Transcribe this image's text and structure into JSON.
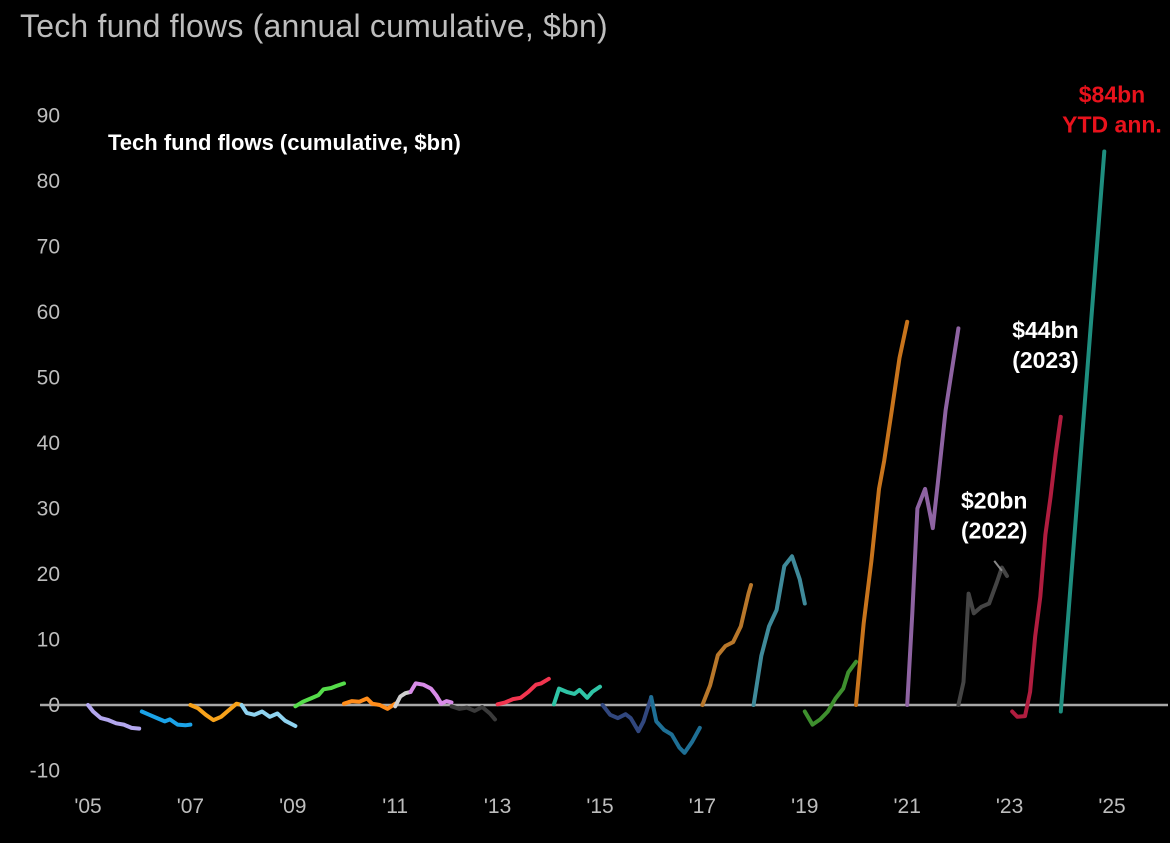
{
  "page_title": "Tech fund flows (annual cumulative, $bn)",
  "chart_data": {
    "type": "line",
    "title": "Tech fund flows (annual cumulative, $bn)",
    "inner_title": "Tech fund flows (cumulative, $bn)",
    "xlabel": "",
    "ylabel": "",
    "xlim": [
      2005,
      2025.4
    ],
    "ylim": [
      -10,
      92
    ],
    "yticks": [
      90,
      80,
      70,
      60,
      50,
      40,
      30,
      20,
      10,
      0,
      -10
    ],
    "xticks": [
      {
        "value": 2005,
        "label": "'05"
      },
      {
        "value": 2007,
        "label": "'07"
      },
      {
        "value": 2009,
        "label": "'09"
      },
      {
        "value": 2011,
        "label": "'11"
      },
      {
        "value": 2013,
        "label": "'13"
      },
      {
        "value": 2015,
        "label": "'15"
      },
      {
        "value": 2017,
        "label": "'17"
      },
      {
        "value": 2019,
        "label": "'19"
      },
      {
        "value": 2021,
        "label": "'21"
      },
      {
        "value": 2023,
        "label": "'23"
      },
      {
        "value": 2025,
        "label": "'25"
      }
    ],
    "grid": false,
    "zero_line_color": "#a8a8a8",
    "series": [
      {
        "color": "#b3a7ee",
        "points": [
          [
            2005.0,
            0
          ],
          [
            2005.1,
            -1
          ],
          [
            2005.25,
            -2
          ],
          [
            2005.4,
            -2.3
          ],
          [
            2005.55,
            -2.8
          ],
          [
            2005.7,
            -3
          ],
          [
            2005.85,
            -3.5
          ],
          [
            2006.0,
            -3.6
          ]
        ]
      },
      {
        "color": "#1ba3e8",
        "points": [
          [
            2006.05,
            -1
          ],
          [
            2006.2,
            -1.5
          ],
          [
            2006.35,
            -2
          ],
          [
            2006.5,
            -2.5
          ],
          [
            2006.6,
            -2.2
          ],
          [
            2006.75,
            -3
          ],
          [
            2006.9,
            -3.1
          ],
          [
            2007.0,
            -3
          ]
        ]
      },
      {
        "color": "#f7a21a",
        "points": [
          [
            2007.0,
            0
          ],
          [
            2007.15,
            -0.5
          ],
          [
            2007.3,
            -1.5
          ],
          [
            2007.45,
            -2.3
          ],
          [
            2007.6,
            -1.8
          ],
          [
            2007.75,
            -0.8
          ],
          [
            2007.9,
            0.2
          ],
          [
            2008.0,
            0
          ]
        ]
      },
      {
        "color": "#8fd3f0",
        "points": [
          [
            2008.0,
            0
          ],
          [
            2008.1,
            -1.2
          ],
          [
            2008.25,
            -1.5
          ],
          [
            2008.4,
            -1
          ],
          [
            2008.55,
            -1.8
          ],
          [
            2008.7,
            -1.3
          ],
          [
            2008.85,
            -2.4
          ],
          [
            2009.05,
            -3.2
          ]
        ]
      },
      {
        "color": "#55dc4a",
        "points": [
          [
            2009.05,
            -0.2
          ],
          [
            2009.2,
            0.5
          ],
          [
            2009.35,
            1
          ],
          [
            2009.5,
            1.5
          ],
          [
            2009.6,
            2.4
          ],
          [
            2009.75,
            2.6
          ],
          [
            2009.85,
            2.9
          ],
          [
            2010.0,
            3.3
          ]
        ]
      },
      {
        "color": "#ff8c1a",
        "points": [
          [
            2010.0,
            0.2
          ],
          [
            2010.15,
            0.6
          ],
          [
            2010.3,
            0.5
          ],
          [
            2010.45,
            1
          ],
          [
            2010.55,
            0.2
          ],
          [
            2010.7,
            0
          ],
          [
            2010.85,
            -0.6
          ],
          [
            2011.0,
            0.2
          ]
        ]
      },
      {
        "color": "#d0d0d0",
        "points": [
          [
            2011.0,
            -0.2
          ],
          [
            2011.1,
            1.3
          ],
          [
            2011.2,
            1.8
          ],
          [
            2011.3,
            2
          ]
        ]
      },
      {
        "color": "#d88be8",
        "points": [
          [
            2011.3,
            2
          ],
          [
            2011.4,
            3.3
          ],
          [
            2011.55,
            3.1
          ],
          [
            2011.7,
            2.5
          ],
          [
            2011.8,
            1.5
          ],
          [
            2011.9,
            0.2
          ],
          [
            2012.0,
            0.6
          ],
          [
            2012.1,
            0.4
          ]
        ]
      },
      {
        "color": "#3a3a3a",
        "points": [
          [
            2012.1,
            -0.2
          ],
          [
            2012.25,
            -0.6
          ],
          [
            2012.4,
            -0.4
          ],
          [
            2012.55,
            -0.9
          ],
          [
            2012.7,
            -0.3
          ],
          [
            2012.85,
            -1.3
          ],
          [
            2012.95,
            -2.2
          ]
        ]
      },
      {
        "color": "#f2354f",
        "points": [
          [
            2013.0,
            0.1
          ],
          [
            2013.15,
            0.4
          ],
          [
            2013.3,
            0.9
          ],
          [
            2013.45,
            1.1
          ],
          [
            2013.6,
            2
          ],
          [
            2013.75,
            3.1
          ],
          [
            2013.85,
            3.3
          ],
          [
            2014.0,
            4
          ]
        ]
      },
      {
        "color": "#2fc4a6",
        "points": [
          [
            2014.1,
            0.1
          ],
          [
            2014.2,
            2.5
          ],
          [
            2014.35,
            2
          ],
          [
            2014.5,
            1.7
          ],
          [
            2014.6,
            2.3
          ],
          [
            2014.75,
            1.1
          ],
          [
            2014.85,
            2
          ],
          [
            2015.0,
            2.8
          ]
        ]
      },
      {
        "color": "#31477e",
        "points": [
          [
            2015.05,
            0
          ],
          [
            2015.2,
            -1.5
          ],
          [
            2015.35,
            -2
          ],
          [
            2015.5,
            -1.4
          ],
          [
            2015.6,
            -2
          ],
          [
            2015.75,
            -4
          ],
          [
            2015.85,
            -2.5
          ],
          [
            2016.0,
            1.2
          ]
        ]
      },
      {
        "color": "#1e6f95",
        "points": [
          [
            2016.0,
            1.2
          ],
          [
            2016.1,
            -2.5
          ],
          [
            2016.25,
            -3.8
          ],
          [
            2016.4,
            -4.5
          ],
          [
            2016.55,
            -6.5
          ],
          [
            2016.65,
            -7.3
          ],
          [
            2016.8,
            -5.6
          ],
          [
            2016.95,
            -3.5
          ]
        ]
      },
      {
        "color": "#b8772a",
        "points": [
          [
            2017.0,
            0
          ],
          [
            2017.15,
            3
          ],
          [
            2017.3,
            7.6
          ],
          [
            2017.45,
            9
          ],
          [
            2017.6,
            9.6
          ],
          [
            2017.75,
            12
          ],
          [
            2017.9,
            17
          ],
          [
            2017.95,
            18.3
          ]
        ]
      },
      {
        "color": "#3f8a9a",
        "points": [
          [
            2018.0,
            0
          ],
          [
            2018.15,
            7.5
          ],
          [
            2018.3,
            12
          ],
          [
            2018.45,
            14.5
          ],
          [
            2018.6,
            21.2
          ],
          [
            2018.75,
            22.7
          ],
          [
            2018.9,
            19.2
          ],
          [
            2019.0,
            15.5
          ]
        ]
      },
      {
        "color": "#3e8f2e",
        "points": [
          [
            2019.0,
            -1
          ],
          [
            2019.15,
            -3
          ],
          [
            2019.3,
            -2.2
          ],
          [
            2019.45,
            -1
          ],
          [
            2019.6,
            1
          ],
          [
            2019.75,
            2.5
          ],
          [
            2019.85,
            5
          ],
          [
            2020.0,
            6.6
          ]
        ]
      },
      {
        "color": "#c8741c",
        "points": [
          [
            2020.0,
            0
          ],
          [
            2020.15,
            12.5
          ],
          [
            2020.3,
            22
          ],
          [
            2020.45,
            33
          ],
          [
            2020.55,
            37.3
          ],
          [
            2020.7,
            45
          ],
          [
            2020.85,
            53
          ],
          [
            2021.0,
            58.5
          ]
        ]
      },
      {
        "color": "#8e63a2",
        "points": [
          [
            2021.0,
            0
          ],
          [
            2021.1,
            14
          ],
          [
            2021.2,
            30
          ],
          [
            2021.35,
            33
          ],
          [
            2021.5,
            27
          ],
          [
            2021.6,
            34
          ],
          [
            2021.75,
            45
          ],
          [
            2021.85,
            50
          ],
          [
            2022.0,
            57.5
          ]
        ]
      },
      {
        "color": "#444444",
        "points": [
          [
            2022.0,
            0
          ],
          [
            2022.1,
            3.5
          ],
          [
            2022.2,
            17
          ],
          [
            2022.3,
            14
          ],
          [
            2022.45,
            15
          ],
          [
            2022.6,
            15.5
          ],
          [
            2022.75,
            18.7
          ],
          [
            2022.85,
            21
          ],
          [
            2022.95,
            19.7
          ]
        ]
      },
      {
        "color": "#b01d3f",
        "points": [
          [
            2023.05,
            -1
          ],
          [
            2023.15,
            -1.8
          ],
          [
            2023.3,
            -1.7
          ],
          [
            2023.4,
            2
          ],
          [
            2023.5,
            10.5
          ],
          [
            2023.6,
            16.5
          ],
          [
            2023.7,
            26
          ],
          [
            2023.8,
            31.8
          ],
          [
            2023.9,
            38.4
          ],
          [
            2024.0,
            44
          ]
        ]
      },
      {
        "color": "#1e8e7f",
        "points": [
          [
            2024.0,
            -1
          ],
          [
            2024.85,
            84.5
          ]
        ]
      }
    ],
    "annotations": [
      {
        "lines": [
          "$84bn",
          "YTD ann."
        ],
        "color": "#e8121c",
        "x": 2025.0,
        "y": 92
      },
      {
        "lines": [
          "$44bn",
          "(2023)"
        ],
        "color": "#ffffff",
        "x": 2023.7,
        "y": 56
      },
      {
        "lines": [
          "$20bn",
          "(2022)"
        ],
        "color": "#ffffff",
        "x": 2022.7,
        "y": 30
      }
    ],
    "leader": {
      "from": [
        2022.7,
        22
      ],
      "to": [
        2022.85,
        20.5
      ],
      "color": "#888888"
    }
  }
}
